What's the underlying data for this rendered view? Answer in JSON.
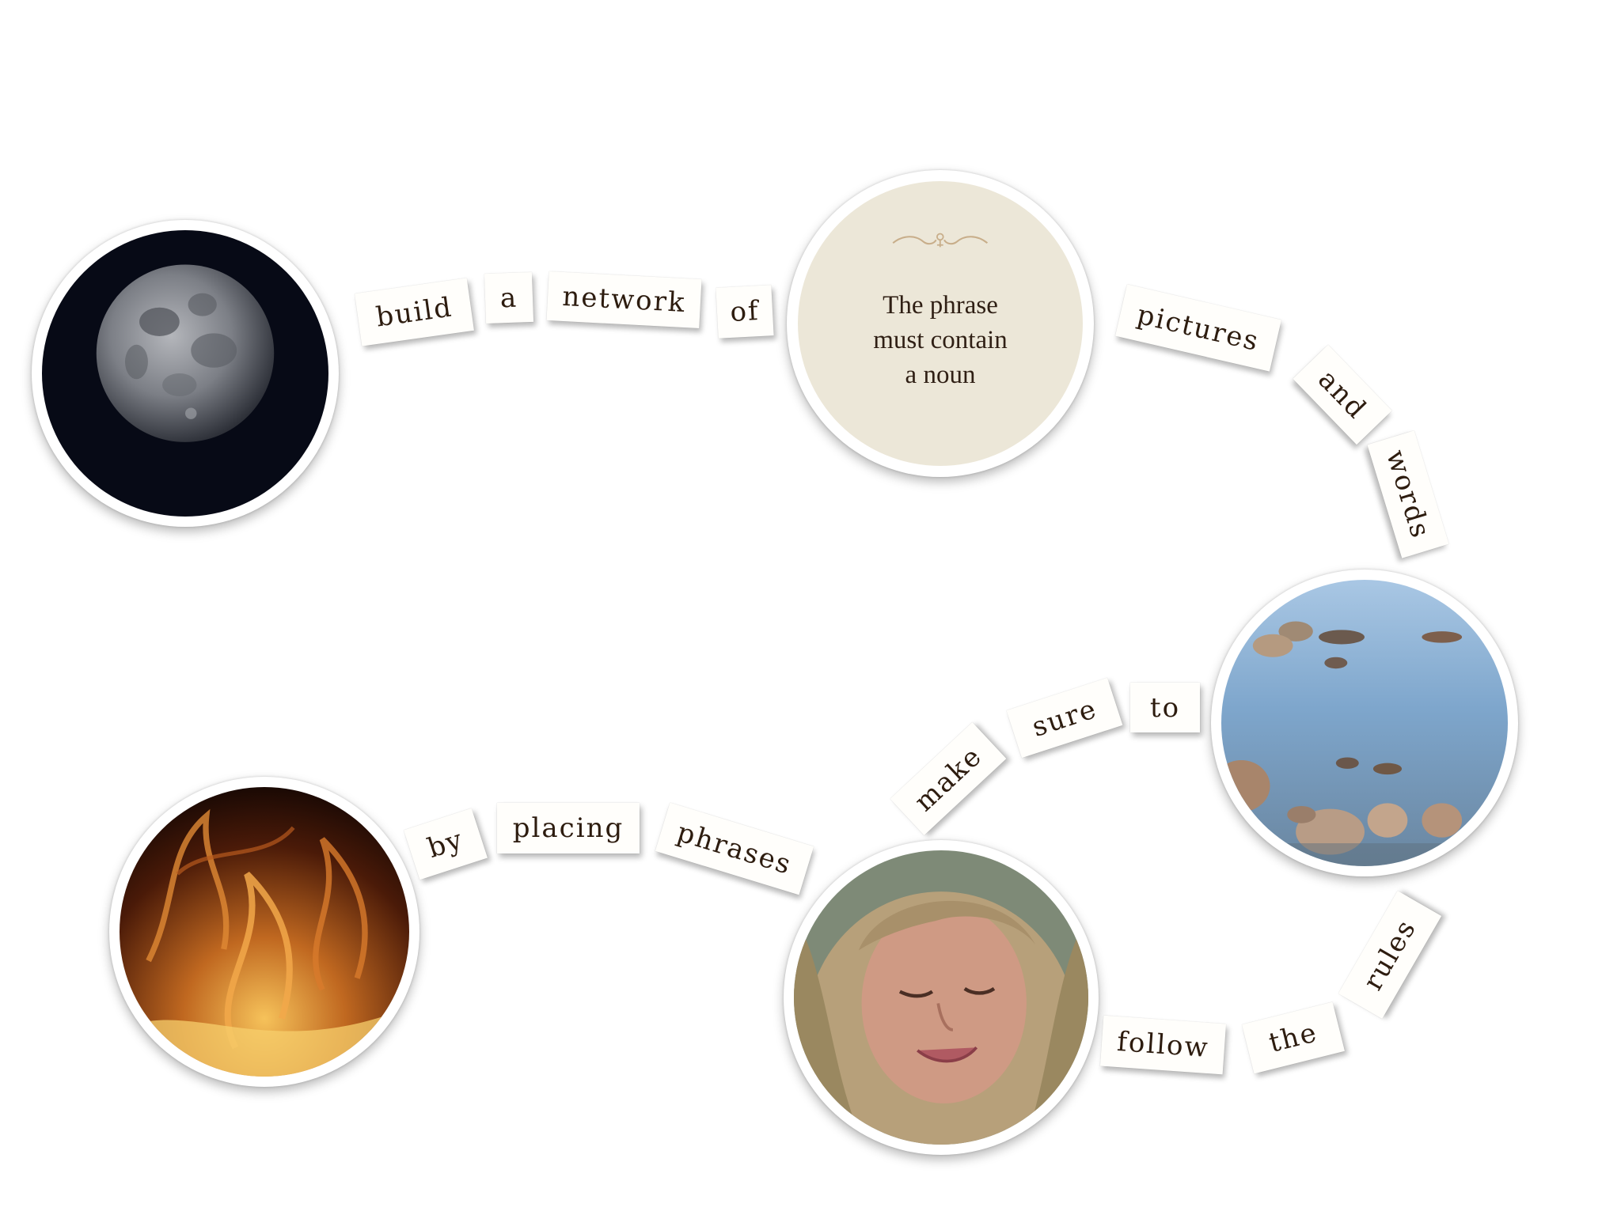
{
  "prompt_card": {
    "text": "The phrase\nmust contain\na noun",
    "ornament_icon": "flourish-ornament-icon",
    "background": "#ece7d8",
    "ornament_color": "#c8ae8a"
  },
  "pictures": [
    {
      "name": "moon-picture",
      "subject": "moon",
      "icon": "moon-icon"
    },
    {
      "name": "rocks-in-water-picture",
      "subject": "rocks-in-water",
      "icon": "rocks-water-icon"
    },
    {
      "name": "girl-face-picture",
      "subject": "girl-face",
      "icon": "face-icon"
    },
    {
      "name": "fire-picture",
      "subject": "fire",
      "icon": "fire-icon"
    }
  ],
  "word_tiles": [
    "build",
    "a",
    "network",
    "of",
    "pictures",
    "and",
    "words",
    "to",
    "sure",
    "make",
    "phrases",
    "placing",
    "by",
    "follow",
    "the",
    "rules"
  ],
  "colors": {
    "tile_background": "#fffefb",
    "tile_text": "#2d1c0f",
    "page_background": "#ffffff"
  }
}
